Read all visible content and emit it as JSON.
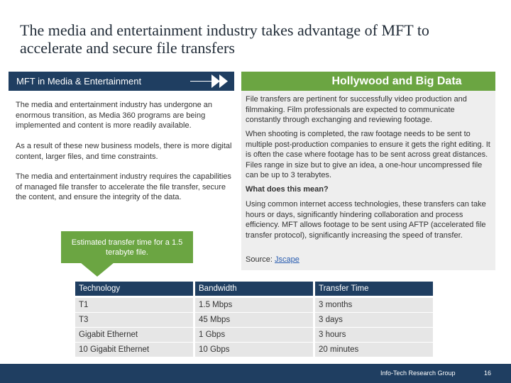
{
  "slide": {
    "title": "The media and entertainment industry takes advantage of MFT to accelerate and secure file transfers"
  },
  "left": {
    "header": "MFT in Media & Entertainment",
    "paragraphs": [
      "The media and entertainment industry has undergone an enormous transition, as Media 360 programs are being implemented and content is more readily available.",
      "As a result of these new business models, there is more digital content, larger files, and time constraints.",
      "The media and entertainment industry requires the capabilities of managed file transfer to accelerate the file transfer, secure the content, and ensure the integrity of the data."
    ],
    "callout": "Estimated transfer time for a 1.5 terabyte file."
  },
  "right": {
    "header": "Hollywood and Big Data",
    "paragraphs": [
      "File transfers are pertinent for successfully video production and filmmaking. Film professionals are expected to communicate constantly through exchanging and reviewing footage.",
      "When shooting is completed, the raw footage needs to be sent to multiple post-production companies to ensure it gets the right editing. It is often the case where footage has to be sent across great distances. Files range in size but to give an idea, a one-hour uncompressed file can be up to 3 terabytes.",
      "What does this mean?",
      "Using common internet access technologies, these transfers can take hours or days, significantly hindering collaboration and process efficiency. MFT allows footage to be sent using AFTP (accelerated file transfer protocol), significantly increasing the speed of transfer."
    ],
    "source_label": "Source:",
    "source_link": "Jscape"
  },
  "table": {
    "headers": [
      "Technology",
      "Bandwidth",
      "Transfer Time"
    ],
    "rows": [
      [
        "T1",
        "1.5 Mbps",
        "3 months"
      ],
      [
        "T3",
        "45 Mbps",
        "3 days"
      ],
      [
        "Gigabit Ethernet",
        "1 Gbps",
        "3 hours"
      ],
      [
        "10 Gigabit Ethernet",
        "10 Gbps",
        "20 minutes"
      ]
    ]
  },
  "footer": {
    "brand": "Info-Tech Research Group",
    "page": "16"
  },
  "colors": {
    "navy": "#1f3e61",
    "green": "#6ba542",
    "panel_gray": "#eeeeee",
    "cell_gray": "#e6e6e6",
    "link_blue": "#2a5db0"
  }
}
